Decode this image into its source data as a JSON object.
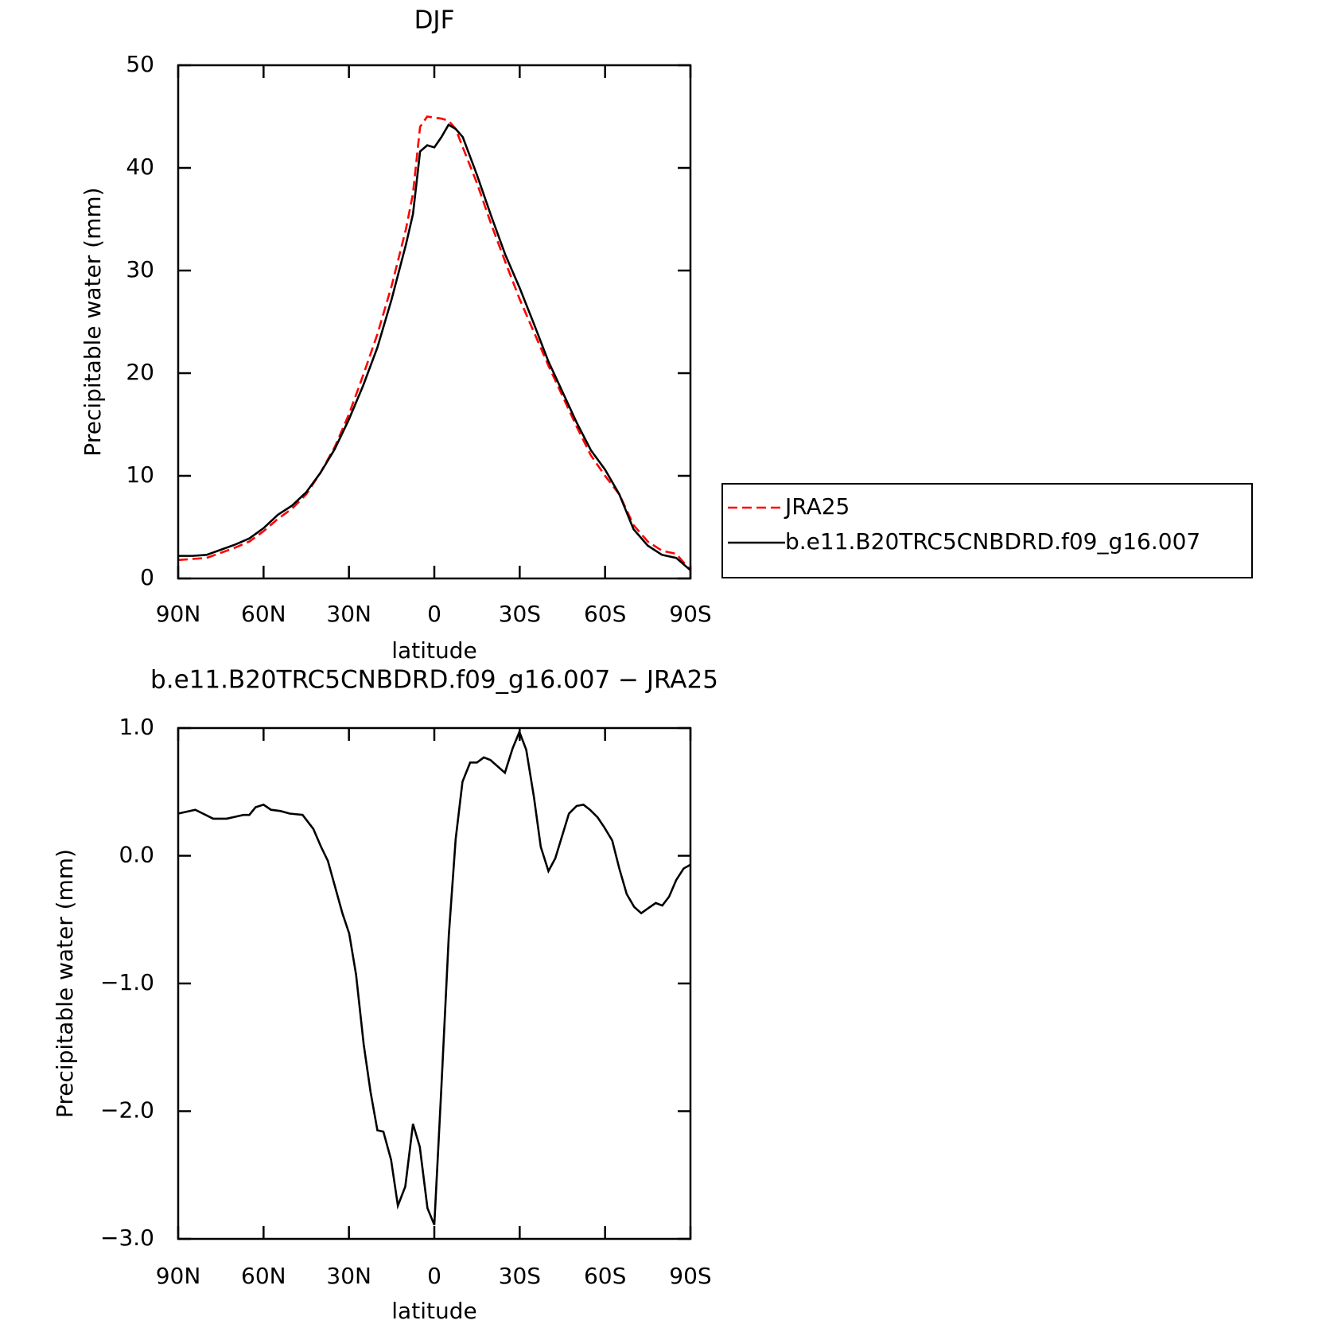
{
  "chart_data": [
    {
      "type": "line",
      "title": "DJF",
      "xlabel": "latitude",
      "ylabel": "Precipitable water (mm)",
      "x": [
        90,
        85,
        80,
        75,
        70,
        65,
        60,
        55,
        50,
        45,
        40,
        35,
        30,
        25,
        20,
        15,
        10,
        7.5,
        5,
        2.5,
        0,
        -2.5,
        -5,
        -7.5,
        -10,
        -15,
        -20,
        -25,
        -30,
        -35,
        -40,
        -45,
        -50,
        -55,
        -60,
        -65,
        -70,
        -75,
        -80,
        -85,
        -90
      ],
      "series": [
        {
          "name": "JRA25",
          "color": "#ff0000",
          "style": "dashed",
          "values": [
            1.8,
            1.9,
            2.0,
            2.5,
            3.0,
            3.6,
            4.6,
            5.8,
            6.8,
            8.2,
            10.3,
            12.8,
            16.0,
            19.8,
            23.8,
            28.5,
            34.0,
            37.5,
            44.0,
            45.0,
            44.9,
            44.8,
            44.6,
            43.8,
            42.0,
            38.5,
            34.5,
            30.8,
            27.2,
            24.0,
            20.8,
            17.8,
            14.8,
            12.0,
            10.0,
            8.2,
            5.2,
            3.6,
            2.7,
            2.4,
            0.8
          ]
        },
        {
          "name": "b.e11.B20TRC5CNBDRD.f09_g16.007",
          "color": "#000000",
          "style": "solid",
          "values": [
            2.2,
            2.2,
            2.3,
            2.8,
            3.3,
            3.9,
            4.9,
            6.2,
            7.1,
            8.4,
            10.3,
            12.6,
            15.5,
            18.8,
            22.5,
            27.2,
            32.5,
            35.5,
            41.6,
            42.2,
            42.0,
            43.0,
            44.2,
            43.8,
            43.0,
            39.3,
            35.3,
            31.5,
            28.3,
            24.8,
            21.2,
            18.2,
            15.2,
            12.5,
            10.6,
            8.2,
            4.8,
            3.2,
            2.3,
            2.0,
            0.8
          ]
        }
      ],
      "xlim": [
        90,
        -90
      ],
      "xticks": [
        {
          "value": 90,
          "label": "90N"
        },
        {
          "value": 60,
          "label": "60N"
        },
        {
          "value": 30,
          "label": "30N"
        },
        0,
        {
          "value": -30,
          "label": "30S"
        },
        {
          "value": -60,
          "label": "60S"
        },
        {
          "value": -90,
          "label": "90S"
        }
      ],
      "ylim": [
        0,
        50
      ],
      "yticks": [
        0,
        10,
        20,
        30,
        40,
        50
      ],
      "legend": "right"
    },
    {
      "type": "line",
      "title": "b.e11.B20TRC5CNBDRD.f09_g16.007 − JRA25",
      "xlabel": "latitude",
      "ylabel": "Precipitable water (mm)",
      "x": [
        90,
        84,
        77.7,
        73,
        67,
        65,
        62.8,
        60,
        57.4,
        54,
        50.8,
        46.3,
        42.5,
        39.8,
        37.4,
        32.3,
        29.9,
        27.5,
        24.8,
        22.4,
        20,
        17.9,
        15.2,
        12.8,
        10.2,
        7.5,
        5.1,
        2.4,
        0,
        -2.4,
        -5.1,
        -7.5,
        -9.9,
        -12.6,
        -15,
        -17.4,
        -19.7,
        -24.8,
        -27.5,
        -29.9,
        -32.3,
        -35,
        -37.4,
        -40.1,
        -42.5,
        -47.3,
        -50,
        -52.4,
        -54.7,
        -57.4,
        -59.8,
        -62.5,
        -65,
        -67.6,
        -70.2,
        -72.7,
        -75.2,
        -77.8,
        -80.1,
        -82.5,
        -85,
        -87.6,
        -90
      ],
      "values": [
        0.33,
        0.36,
        0.29,
        0.29,
        0.32,
        0.32,
        0.38,
        0.4,
        0.36,
        0.35,
        0.33,
        0.32,
        0.21,
        0.07,
        -0.04,
        -0.45,
        -0.61,
        -0.93,
        -1.48,
        -1.85,
        -2.15,
        -2.16,
        -2.38,
        -2.74,
        -2.59,
        -2.1,
        -2.28,
        -2.76,
        -2.89,
        -1.85,
        -0.62,
        0.13,
        0.58,
        0.73,
        0.73,
        0.77,
        0.75,
        0.65,
        0.84,
        0.97,
        0.83,
        0.46,
        0.07,
        -0.12,
        -0.02,
        0.33,
        0.39,
        0.4,
        0.36,
        0.3,
        0.22,
        0.12,
        -0.1,
        -0.3,
        -0.4,
        -0.45,
        -0.41,
        -0.37,
        -0.39,
        -0.32,
        -0.19,
        -0.1,
        -0.07
      ],
      "color": "#000000",
      "xlim": [
        90,
        -90
      ],
      "xticks": [
        {
          "value": 90,
          "label": "90N"
        },
        {
          "value": 60,
          "label": "60N"
        },
        {
          "value": 30,
          "label": "30N"
        },
        0,
        {
          "value": -30,
          "label": "30S"
        },
        {
          "value": -60,
          "label": "60S"
        },
        {
          "value": -90,
          "label": "90S"
        }
      ],
      "ylim": [
        -3,
        1
      ],
      "yticks": [
        {
          "value": -3,
          "label": "−3.0"
        },
        {
          "value": -2,
          "label": "−2.0"
        },
        {
          "value": -1,
          "label": "−1.0"
        },
        {
          "value": 0,
          "label": "0.0"
        },
        {
          "value": 1,
          "label": "1.0"
        }
      ]
    }
  ]
}
